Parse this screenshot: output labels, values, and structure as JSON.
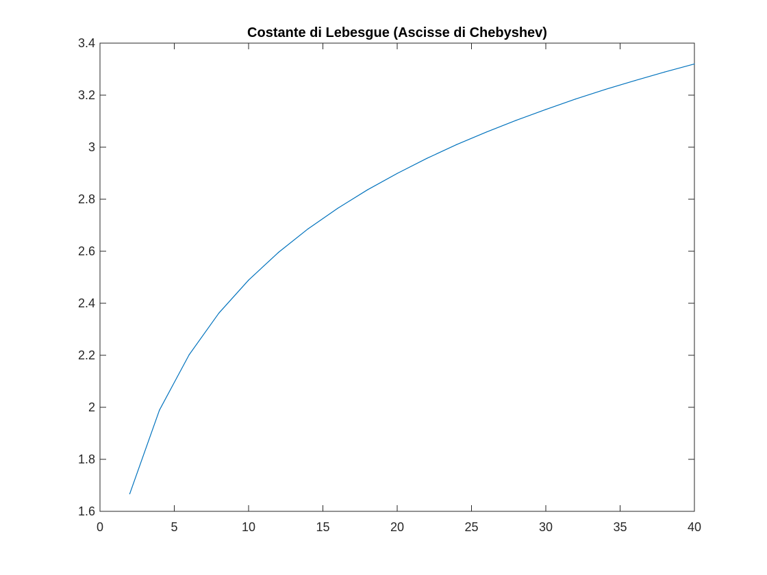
{
  "chart_data": {
    "type": "line",
    "title": "Costante di Lebesgue (Ascisse di Chebyshev)",
    "xlabel": "",
    "ylabel": "",
    "xlim": [
      0,
      40
    ],
    "ylim": [
      1.6,
      3.4
    ],
    "x_ticks": [
      0,
      5,
      10,
      15,
      20,
      25,
      30,
      35,
      40
    ],
    "x_tick_labels": [
      "0",
      "5",
      "10",
      "15",
      "20",
      "25",
      "30",
      "35",
      "40"
    ],
    "y_ticks": [
      1.6,
      1.8,
      2,
      2.2,
      2.4,
      2.6,
      2.8,
      3,
      3.2,
      3.4
    ],
    "y_tick_labels": [
      "1.6",
      "1.8",
      "2",
      "2.2",
      "2.4",
      "2.6",
      "2.8",
      "3",
      "3.2",
      "3.4"
    ],
    "grid": false,
    "legend": "none",
    "series": [
      {
        "color": "#0072BD",
        "x": [
          2,
          4,
          6,
          8,
          10,
          12,
          14,
          16,
          18,
          20,
          22,
          24,
          26,
          28,
          30,
          32,
          34,
          36,
          38,
          40
        ],
        "y": [
          1.667,
          1.989,
          2.202,
          2.362,
          2.489,
          2.595,
          2.686,
          2.765,
          2.836,
          2.899,
          2.957,
          3.01,
          3.058,
          3.103,
          3.145,
          3.185,
          3.222,
          3.256,
          3.289,
          3.32
        ]
      }
    ]
  }
}
